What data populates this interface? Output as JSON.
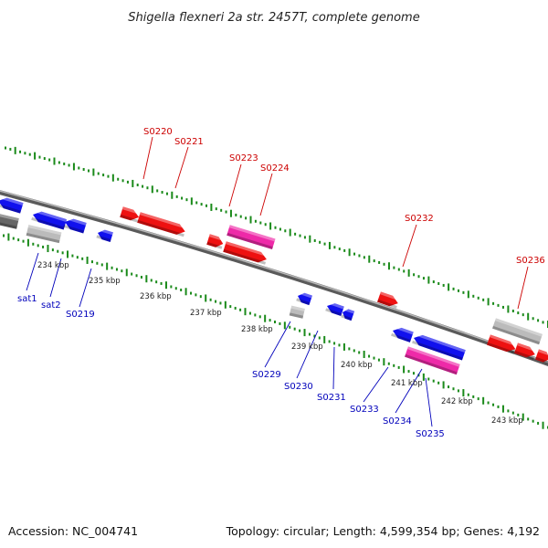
{
  "title": "Shigella flexneri 2a str. 2457T, complete genome",
  "footer": {
    "accession": "Accession: NC_004741",
    "summary": "Topology: circular; Length: 4,599,354 bp; Genes: 4,192"
  },
  "colors": {
    "forward_strand": "#ee1111",
    "reverse_strand": "#1111ee",
    "highlight": "#ee2aa8",
    "unlabeled": "#bbbbbb",
    "backbone": "#888888",
    "forward_label": "#cc0000",
    "reverse_label": "#0000bb",
    "tick": "#1a8a1a"
  },
  "forward_labels": [
    "S0220",
    "S0221",
    "S0223",
    "S0224",
    "S0232",
    "S0236"
  ],
  "reverse_labels": [
    "sat1",
    "sat2",
    "S0219",
    "S0229",
    "S0230",
    "S0231",
    "S0233",
    "S0234",
    "S0235"
  ],
  "kbp_ticks": [
    "234 kbp",
    "235 kbp",
    "236 kbp",
    "237 kbp",
    "238 kbp",
    "239 kbp",
    "240 kbp",
    "241 kbp",
    "242 kbp",
    "243 kbp"
  ]
}
